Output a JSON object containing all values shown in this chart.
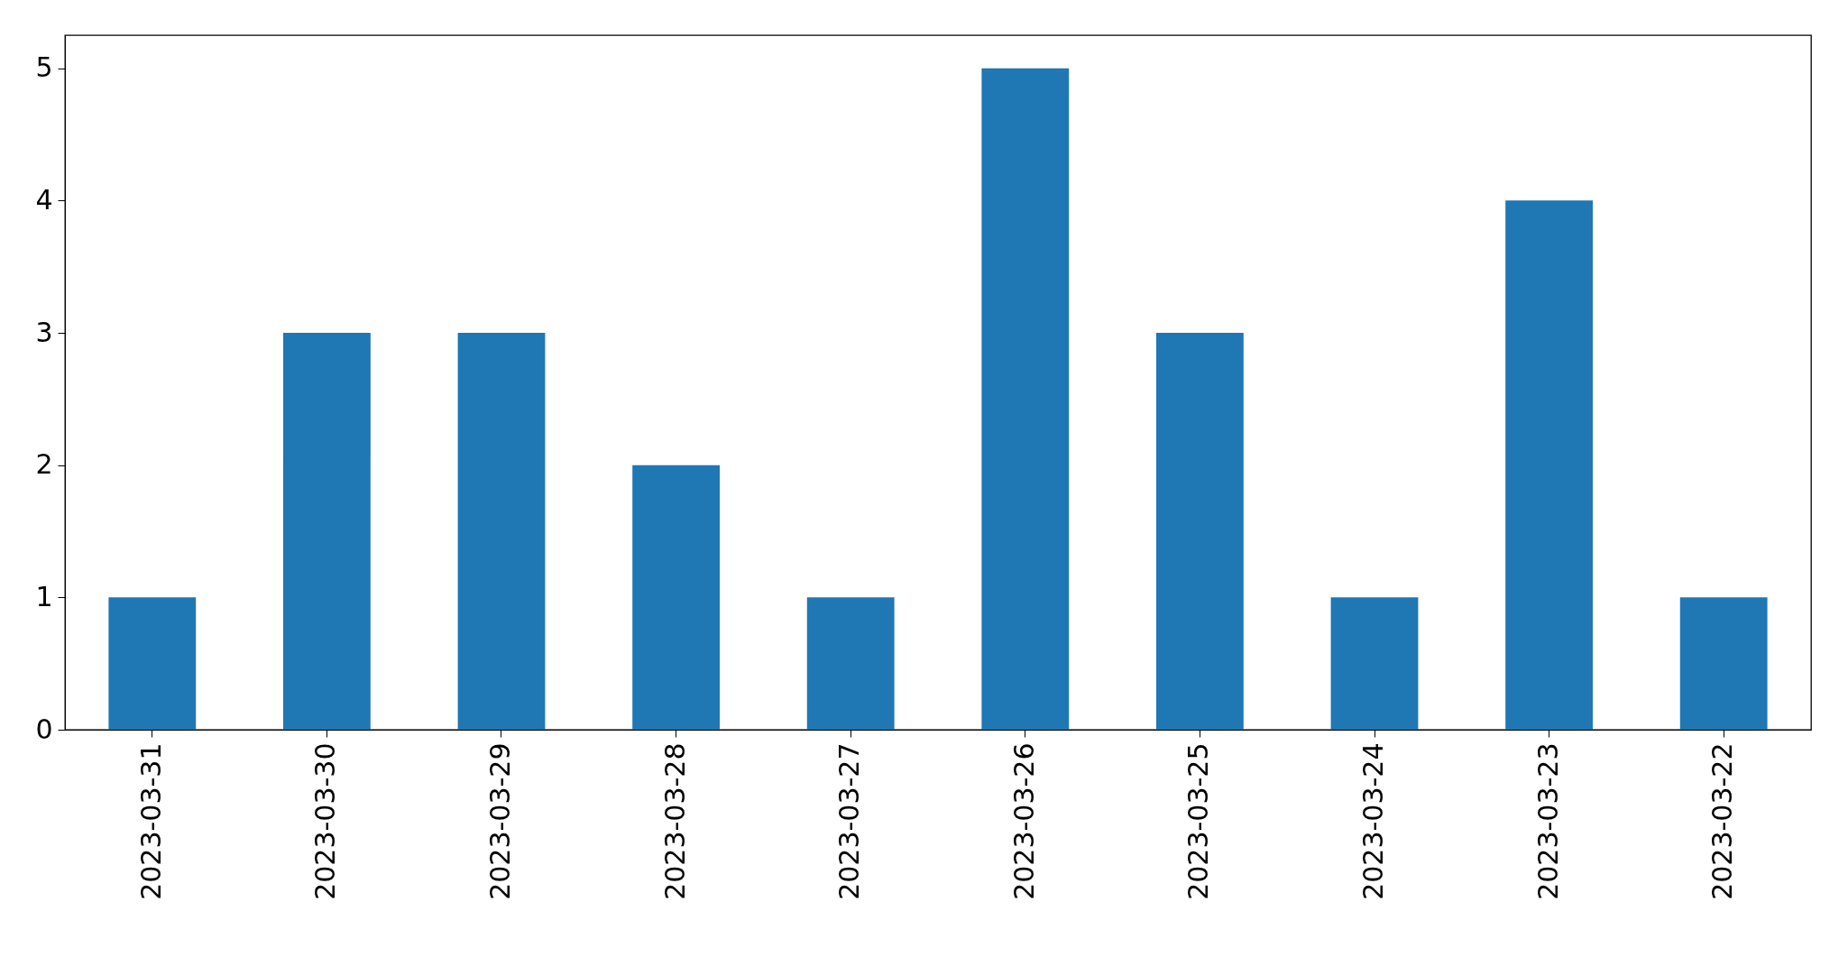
{
  "chart_data": {
    "type": "bar",
    "categories": [
      "2023-03-31",
      "2023-03-30",
      "2023-03-29",
      "2023-03-28",
      "2023-03-27",
      "2023-03-26",
      "2023-03-25",
      "2023-03-24",
      "2023-03-23",
      "2023-03-22"
    ],
    "values": [
      1,
      3,
      3,
      2,
      1,
      5,
      3,
      1,
      4,
      1
    ],
    "color": "#1f77b4",
    "ylim": [
      0,
      5.25
    ],
    "yticks": [
      0,
      1,
      2,
      3,
      4,
      5
    ],
    "grid": false
  }
}
